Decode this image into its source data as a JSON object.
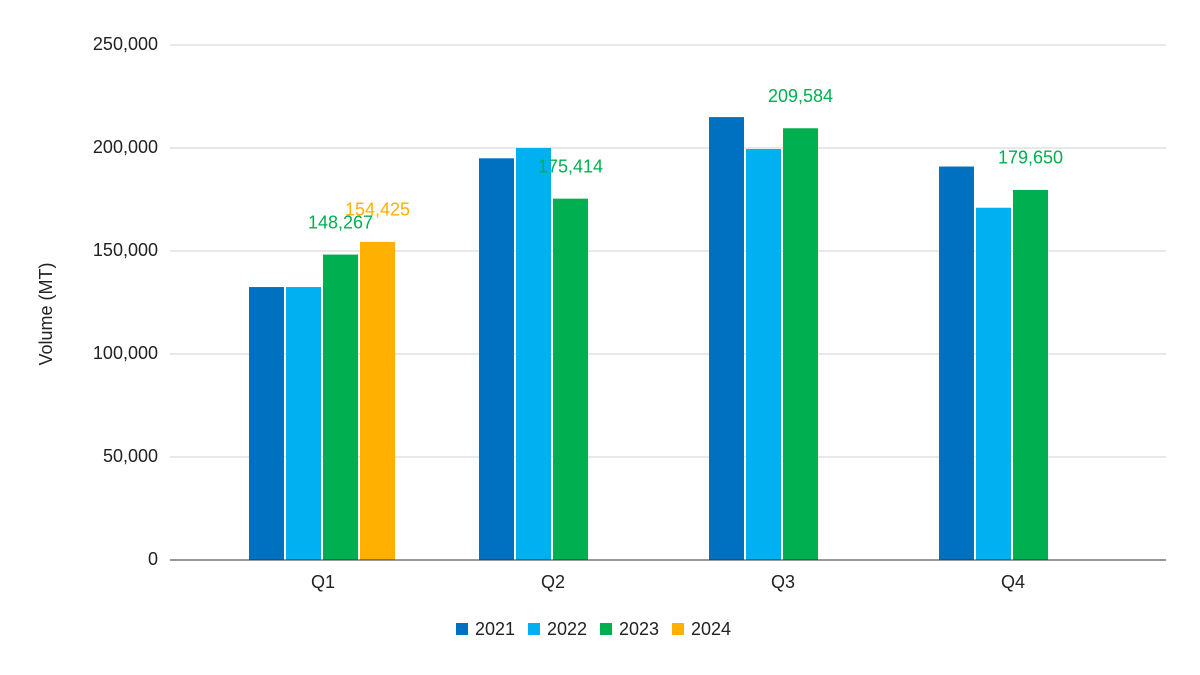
{
  "chart_data": {
    "type": "bar",
    "y_label": "Volume (MT)",
    "categories": [
      "Q1",
      "Q2",
      "Q3",
      "Q4"
    ],
    "series": [
      {
        "name": "2021",
        "color": "#0070c0",
        "values": [
          132500,
          195000,
          215000,
          191000
        ]
      },
      {
        "name": "2022",
        "color": "#00b0f0",
        "values": [
          132500,
          200000,
          199500,
          171000
        ]
      },
      {
        "name": "2023",
        "color": "#00b050",
        "values": [
          148267,
          175414,
          209584,
          179650
        ],
        "value_labels": [
          "148,267",
          "175,414",
          "209,584",
          "179,650"
        ]
      },
      {
        "name": "2024",
        "color": "#ffb000",
        "values": [
          154425,
          null,
          null,
          null
        ],
        "value_labels": [
          "154,425",
          null,
          null,
          null
        ]
      }
    ],
    "ylim": [
      0,
      250000
    ],
    "yticks": [
      0,
      {
        "value": 50000,
        "label": "50,000"
      },
      {
        "value": 100000,
        "label": "100,000"
      },
      {
        "value": 150000,
        "label": "150,000"
      },
      {
        "value": 200000,
        "label": "200,000"
      },
      {
        "value": 250000,
        "label": "250,000"
      }
    ],
    "grid": true,
    "legend": "bottom"
  }
}
